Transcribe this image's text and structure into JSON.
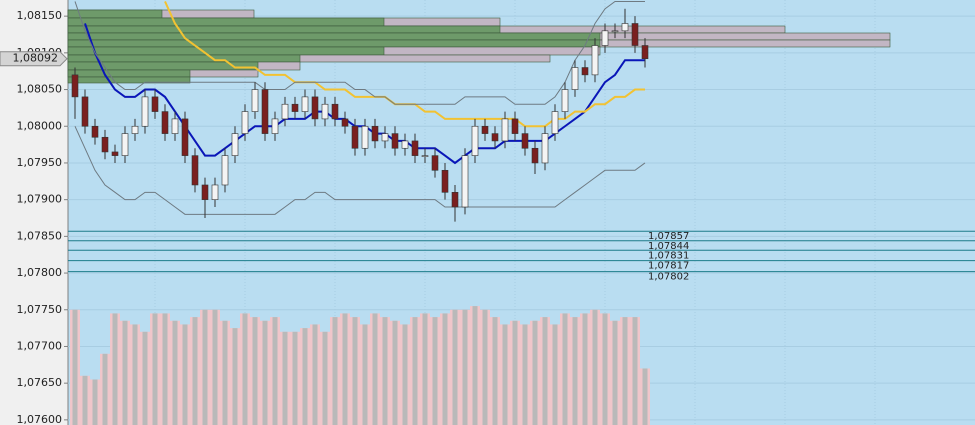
{
  "chart_data": {
    "type": "candlestick",
    "ylim": [
      1.07593,
      1.08172
    ],
    "yticks": [
      {
        "value": 1.0815,
        "label": "1,08150"
      },
      {
        "value": 1.081,
        "label": "1,08100"
      },
      {
        "value": 1.0805,
        "label": "1,08050"
      },
      {
        "value": 1.08,
        "label": "1,08000"
      },
      {
        "value": 1.0795,
        "label": "1,07950"
      },
      {
        "value": 1.079,
        "label": "1,07900"
      },
      {
        "value": 1.0785,
        "label": "1,07850"
      },
      {
        "value": 1.078,
        "label": "1,07800"
      },
      {
        "value": 1.0775,
        "label": "1,07750"
      },
      {
        "value": 1.077,
        "label": "1,07700"
      },
      {
        "value": 1.0765,
        "label": "1,07650"
      },
      {
        "value": 1.076,
        "label": "1,07600"
      }
    ],
    "grid": true,
    "up_color": "#f4f4f4",
    "down_color": "#7a1f1f",
    "open": [
      1.0807,
      1.0804,
      1.08,
      1.07985,
      1.07965,
      1.0796,
      1.0799,
      1.08,
      1.0804,
      1.0802,
      1.0799,
      1.0801,
      1.0796,
      1.0792,
      1.079,
      1.0792,
      1.0796,
      1.0799,
      1.0802,
      1.0805,
      1.0799,
      1.0801,
      1.0803,
      1.0802,
      1.0804,
      1.0801,
      1.0803,
      1.0801,
      1.08,
      1.0797,
      1.08,
      1.0798,
      1.0799,
      1.0797,
      1.0798,
      1.0796,
      1.0796,
      1.0794,
      1.0791,
      1.0789,
      1.0796,
      1.08,
      1.0799,
      1.0798,
      1.0801,
      1.0799,
      1.0797,
      1.0795,
      1.0799,
      1.0802,
      1.0805,
      1.0808,
      1.0807,
      1.0811,
      1.0813,
      1.0813,
      1.0814,
      1.0811
    ],
    "high": [
      1.0808,
      1.0805,
      1.0801,
      1.07995,
      1.07975,
      1.08,
      1.0801,
      1.0805,
      1.0805,
      1.0803,
      1.0802,
      1.0802,
      1.0797,
      1.0793,
      1.0793,
      1.0797,
      1.08,
      1.0803,
      1.0806,
      1.0806,
      1.0802,
      1.0804,
      1.0804,
      1.0805,
      1.0805,
      1.0804,
      1.0804,
      1.0802,
      1.0801,
      1.0801,
      1.0801,
      1.08,
      1.08,
      1.0799,
      1.0799,
      1.0797,
      1.0797,
      1.0795,
      1.0792,
      1.0797,
      1.0801,
      1.0801,
      1.08,
      1.0802,
      1.0802,
      1.08,
      1.0798,
      1.08,
      1.0803,
      1.0806,
      1.0809,
      1.0809,
      1.0812,
      1.0814,
      1.0814,
      1.0816,
      1.0815,
      1.0812
    ],
    "low": [
      1.0801,
      1.0799,
      1.07975,
      1.07955,
      1.0795,
      1.0795,
      1.0798,
      1.0799,
      1.0801,
      1.0798,
      1.0798,
      1.0795,
      1.0791,
      1.07875,
      1.0789,
      1.0791,
      1.0795,
      1.0798,
      1.0801,
      1.0798,
      1.0798,
      1.08,
      1.0801,
      1.0801,
      1.08,
      1.08,
      1.08,
      1.0799,
      1.0796,
      1.0796,
      1.0797,
      1.0797,
      1.0796,
      1.0796,
      1.0795,
      1.0795,
      1.0793,
      1.079,
      1.0787,
      1.0788,
      1.0795,
      1.0798,
      1.0797,
      1.0797,
      1.0798,
      1.0796,
      1.07935,
      1.0794,
      1.0798,
      1.0801,
      1.0804,
      1.0806,
      1.0806,
      1.081,
      1.0812,
      1.0812,
      1.081,
      1.0808
    ],
    "close": [
      1.0804,
      1.08,
      1.07985,
      1.07965,
      1.0796,
      1.0799,
      1.08,
      1.0804,
      1.0802,
      1.0799,
      1.0801,
      1.0796,
      1.0792,
      1.079,
      1.0792,
      1.0796,
      1.0799,
      1.0802,
      1.0805,
      1.0799,
      1.0801,
      1.0803,
      1.0802,
      1.0804,
      1.0801,
      1.0803,
      1.0801,
      1.08,
      1.0797,
      1.08,
      1.0798,
      1.0799,
      1.0797,
      1.0798,
      1.0796,
      1.0796,
      1.0794,
      1.0791,
      1.0789,
      1.0796,
      1.08,
      1.0799,
      1.0798,
      1.0801,
      1.0799,
      1.0797,
      1.0795,
      1.0799,
      1.0802,
      1.0805,
      1.0808,
      1.0807,
      1.0811,
      1.0813,
      1.0813,
      1.0814,
      1.0811,
      1.08092
    ],
    "volume": {
      "color": "#f0c6ca",
      "bar_color": "#b9b9b9",
      "values": [
        1.0775,
        1.0766,
        1.07655,
        1.0769,
        1.07745,
        1.07735,
        1.0773,
        1.0772,
        1.07745,
        1.07745,
        1.07735,
        1.0773,
        1.0774,
        1.0775,
        1.0775,
        1.07735,
        1.07725,
        1.07745,
        1.0774,
        1.07735,
        1.0774,
        1.0772,
        1.0772,
        1.07725,
        1.0773,
        1.0772,
        1.0774,
        1.07745,
        1.0774,
        1.0773,
        1.07745,
        1.0774,
        1.07735,
        1.0773,
        1.0774,
        1.07745,
        1.0774,
        1.07745,
        1.0775,
        1.0775,
        1.07755,
        1.0775,
        1.0774,
        1.0773,
        1.07735,
        1.0773,
        1.07735,
        1.0774,
        1.0773,
        1.07745,
        1.0774,
        1.07745,
        1.0775,
        1.07745,
        1.07735,
        1.0774,
        1.0774,
        1.0767
      ]
    },
    "lines": [
      {
        "color": "#0a16b8",
        "width": 2,
        "values": [
          null,
          1.0814,
          1.081,
          1.0807,
          1.0805,
          1.0804,
          1.0804,
          1.0805,
          1.0805,
          1.0804,
          1.0802,
          1.08,
          1.0798,
          1.0796,
          1.0796,
          1.0797,
          1.0798,
          1.0799,
          1.08,
          1.08,
          1.08,
          1.0801,
          1.0801,
          1.0801,
          1.0802,
          1.0802,
          1.0801,
          1.0801,
          1.08,
          1.08,
          1.0799,
          1.0799,
          1.0798,
          1.0798,
          1.0797,
          1.0797,
          1.0797,
          1.0796,
          1.0795,
          1.0796,
          1.0797,
          1.0797,
          1.0797,
          1.0798,
          1.0798,
          1.0798,
          1.0798,
          1.0798,
          1.0799,
          1.08,
          1.0801,
          1.0802,
          1.0804,
          1.0806,
          1.0807,
          1.0809,
          1.0809,
          1.0809
        ]
      },
      {
        "color": "#f2c232",
        "width": 2,
        "values": [
          null,
          null,
          null,
          null,
          null,
          null,
          null,
          null,
          null,
          1.0817,
          1.0814,
          1.0812,
          1.0811,
          1.081,
          1.0809,
          1.0809,
          1.0808,
          1.0808,
          1.0808,
          1.0807,
          1.0807,
          1.0807,
          1.0806,
          1.0806,
          1.0806,
          1.0805,
          1.0805,
          1.0805,
          1.0804,
          1.0804,
          1.0804,
          1.0804,
          1.0803,
          1.0803,
          1.0803,
          1.0802,
          1.0802,
          1.0801,
          1.0801,
          1.0801,
          1.0801,
          1.0801,
          1.0801,
          1.0801,
          1.0801,
          1.08,
          1.08,
          1.08,
          1.0801,
          1.0801,
          1.0802,
          1.0802,
          1.0803,
          1.0803,
          1.0804,
          1.0804,
          1.0805,
          1.0805
        ]
      },
      {
        "color": "#6e7a82",
        "width": 1,
        "values": [
          1.0817,
          1.0813,
          1.081,
          1.0808,
          1.0806,
          1.0805,
          1.0805,
          1.0806,
          1.0806,
          1.0806,
          1.0806,
          1.0806,
          1.0806,
          1.0806,
          1.0806,
          1.0806,
          1.0806,
          1.0806,
          1.0806,
          1.0805,
          1.0805,
          1.0805,
          1.0806,
          1.0806,
          1.0806,
          1.0806,
          1.0806,
          1.0806,
          1.0805,
          1.0805,
          1.0804,
          1.0804,
          1.0803,
          1.0803,
          1.0803,
          1.0803,
          1.0803,
          1.0803,
          1.0803,
          1.0804,
          1.0804,
          1.0804,
          1.0804,
          1.0804,
          1.0803,
          1.0803,
          1.0803,
          1.0803,
          1.0804,
          1.0806,
          1.0809,
          1.0811,
          1.0814,
          1.0816,
          1.0817,
          1.0817,
          1.0817,
          1.0817
        ]
      },
      {
        "color": "#6e7a82",
        "width": 1,
        "values": [
          1.08,
          1.0797,
          1.0794,
          1.0792,
          1.0791,
          1.079,
          1.079,
          1.0791,
          1.0791,
          1.079,
          1.0789,
          1.0788,
          1.0788,
          1.0788,
          1.0788,
          1.0788,
          1.0788,
          1.0788,
          1.0788,
          1.0788,
          1.0788,
          1.0789,
          1.079,
          1.079,
          1.0791,
          1.0791,
          1.079,
          1.079,
          1.079,
          1.079,
          1.079,
          1.079,
          1.079,
          1.079,
          1.079,
          1.079,
          1.079,
          1.0789,
          1.0789,
          1.0789,
          1.0789,
          1.0789,
          1.0789,
          1.0789,
          1.0789,
          1.0789,
          1.0789,
          1.0789,
          1.0789,
          1.079,
          1.0791,
          1.0792,
          1.0793,
          1.0794,
          1.0794,
          1.0794,
          1.0794,
          1.0795
        ]
      }
    ],
    "levels": {
      "color": "#1d7d8a",
      "values": [
        {
          "value": 1.07857,
          "label": "1,07857"
        },
        {
          "value": 1.07844,
          "label": "1,07844"
        },
        {
          "value": 1.07831,
          "label": "1,07831"
        },
        {
          "value": 1.07817,
          "label": "1,07817"
        },
        {
          "value": 1.07802,
          "label": "1,07802"
        }
      ]
    },
    "current_price": {
      "value": 1.08092,
      "label": "1,08092"
    }
  }
}
